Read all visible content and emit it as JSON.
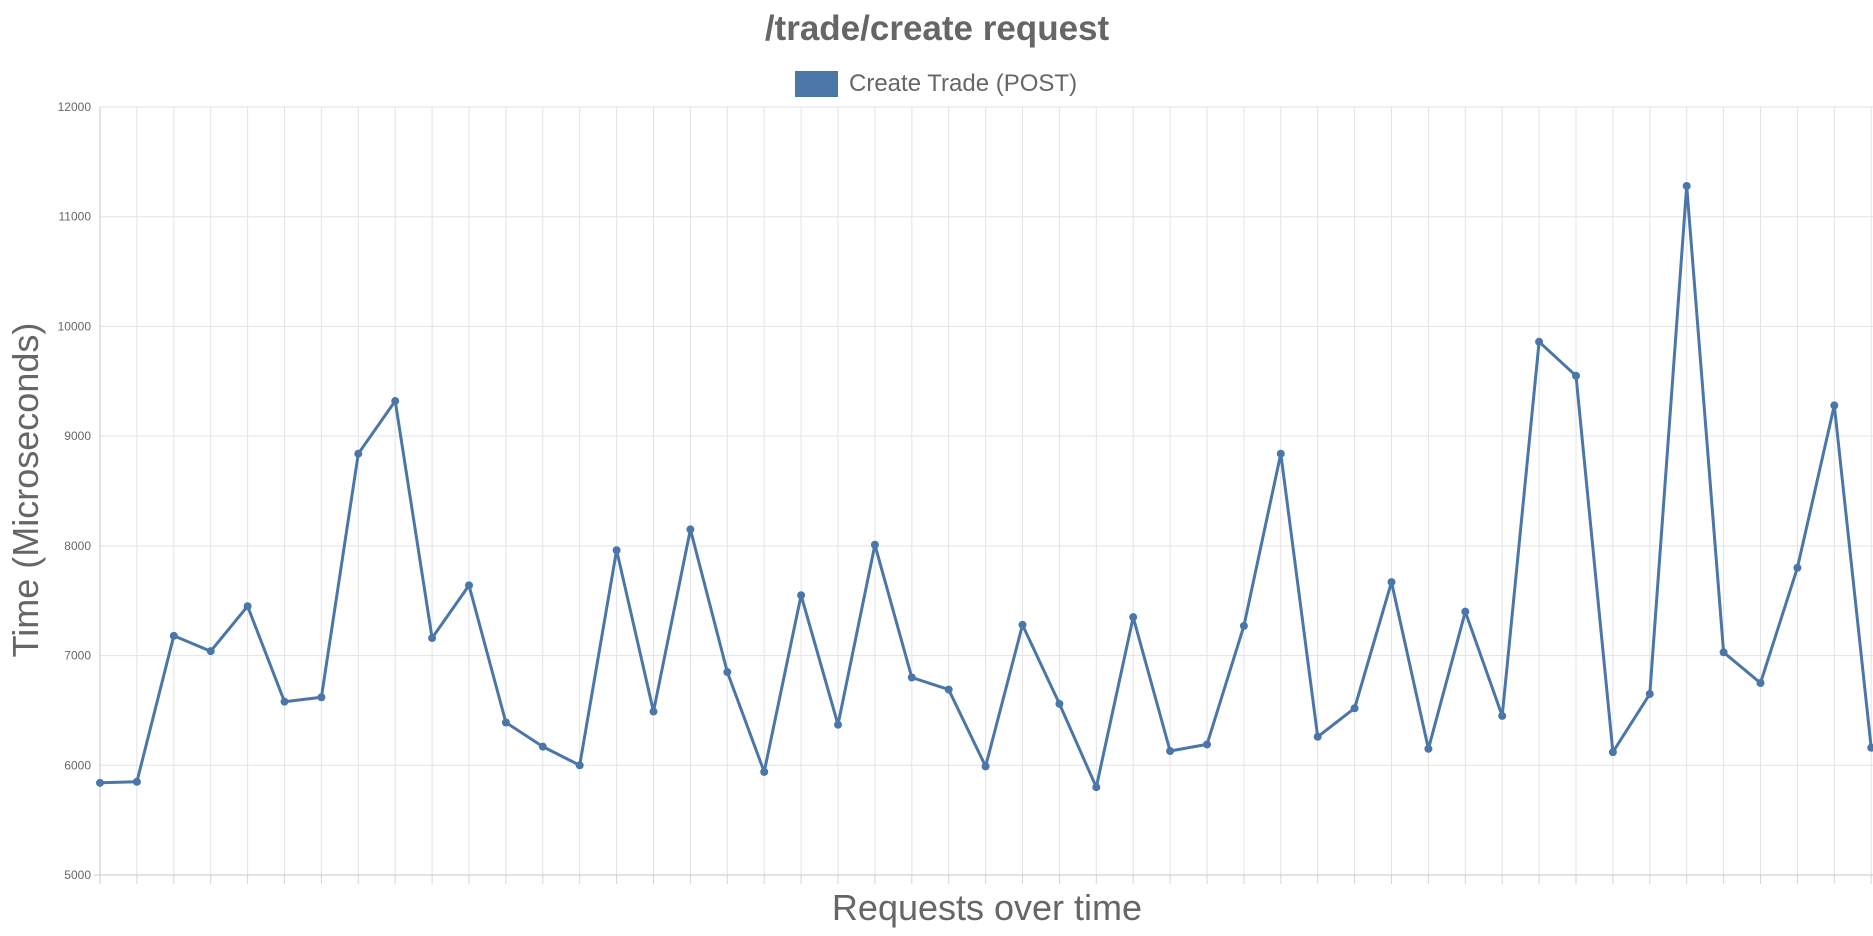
{
  "chart_data": {
    "type": "line",
    "title": "/trade/create request",
    "xlabel": "Requests over time",
    "ylabel": "Time (Microseconds)",
    "ylim": [
      5000,
      12000
    ],
    "yticks": [
      5000,
      6000,
      7000,
      8000,
      9000,
      10000,
      11000,
      12000
    ],
    "grid": true,
    "legend_position": "top",
    "series": [
      {
        "name": "Create Trade (POST)",
        "color": "#4a76a8",
        "values": [
          5840,
          5850,
          7180,
          7040,
          7450,
          6580,
          6620,
          8840,
          9320,
          7160,
          7640,
          6390,
          6170,
          6000,
          7960,
          6490,
          8150,
          6850,
          5940,
          7550,
          6370,
          8010,
          6800,
          6690,
          5990,
          7280,
          6560,
          5800,
          7350,
          6130,
          6190,
          7270,
          8840,
          6260,
          6520,
          7670,
          6150,
          7400,
          6450,
          9860,
          9550,
          6120,
          6650,
          11280,
          7030,
          6750,
          7800,
          9280,
          6160
        ]
      }
    ]
  }
}
